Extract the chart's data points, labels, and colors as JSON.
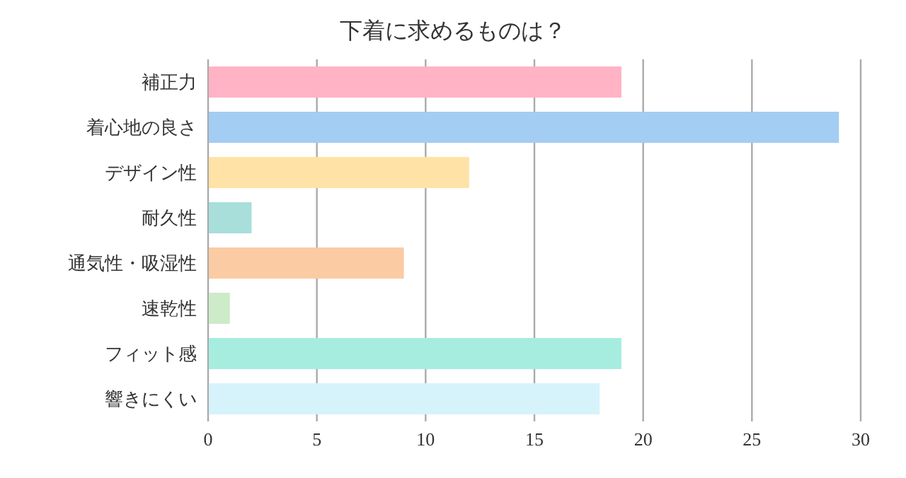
{
  "chart_data": {
    "type": "bar",
    "orientation": "horizontal",
    "title": "下着に求めるものは？",
    "categories": [
      "補正力",
      "着心地の良さ",
      "デザイン性",
      "耐久性",
      "通気性・吸湿性",
      "速乾性",
      "フィット感",
      "響きにくい"
    ],
    "values": [
      19,
      29,
      12,
      2,
      9,
      1,
      19,
      18
    ],
    "colors": [
      "#ffb3c4",
      "#a3cdf2",
      "#ffe2a6",
      "#a8dfda",
      "#fbcba3",
      "#cdebc9",
      "#a6ede0",
      "#d6f3fb"
    ],
    "xlim": [
      0,
      30
    ],
    "xticks": [
      0,
      5,
      10,
      15,
      20,
      25,
      30
    ],
    "grid": "x"
  }
}
